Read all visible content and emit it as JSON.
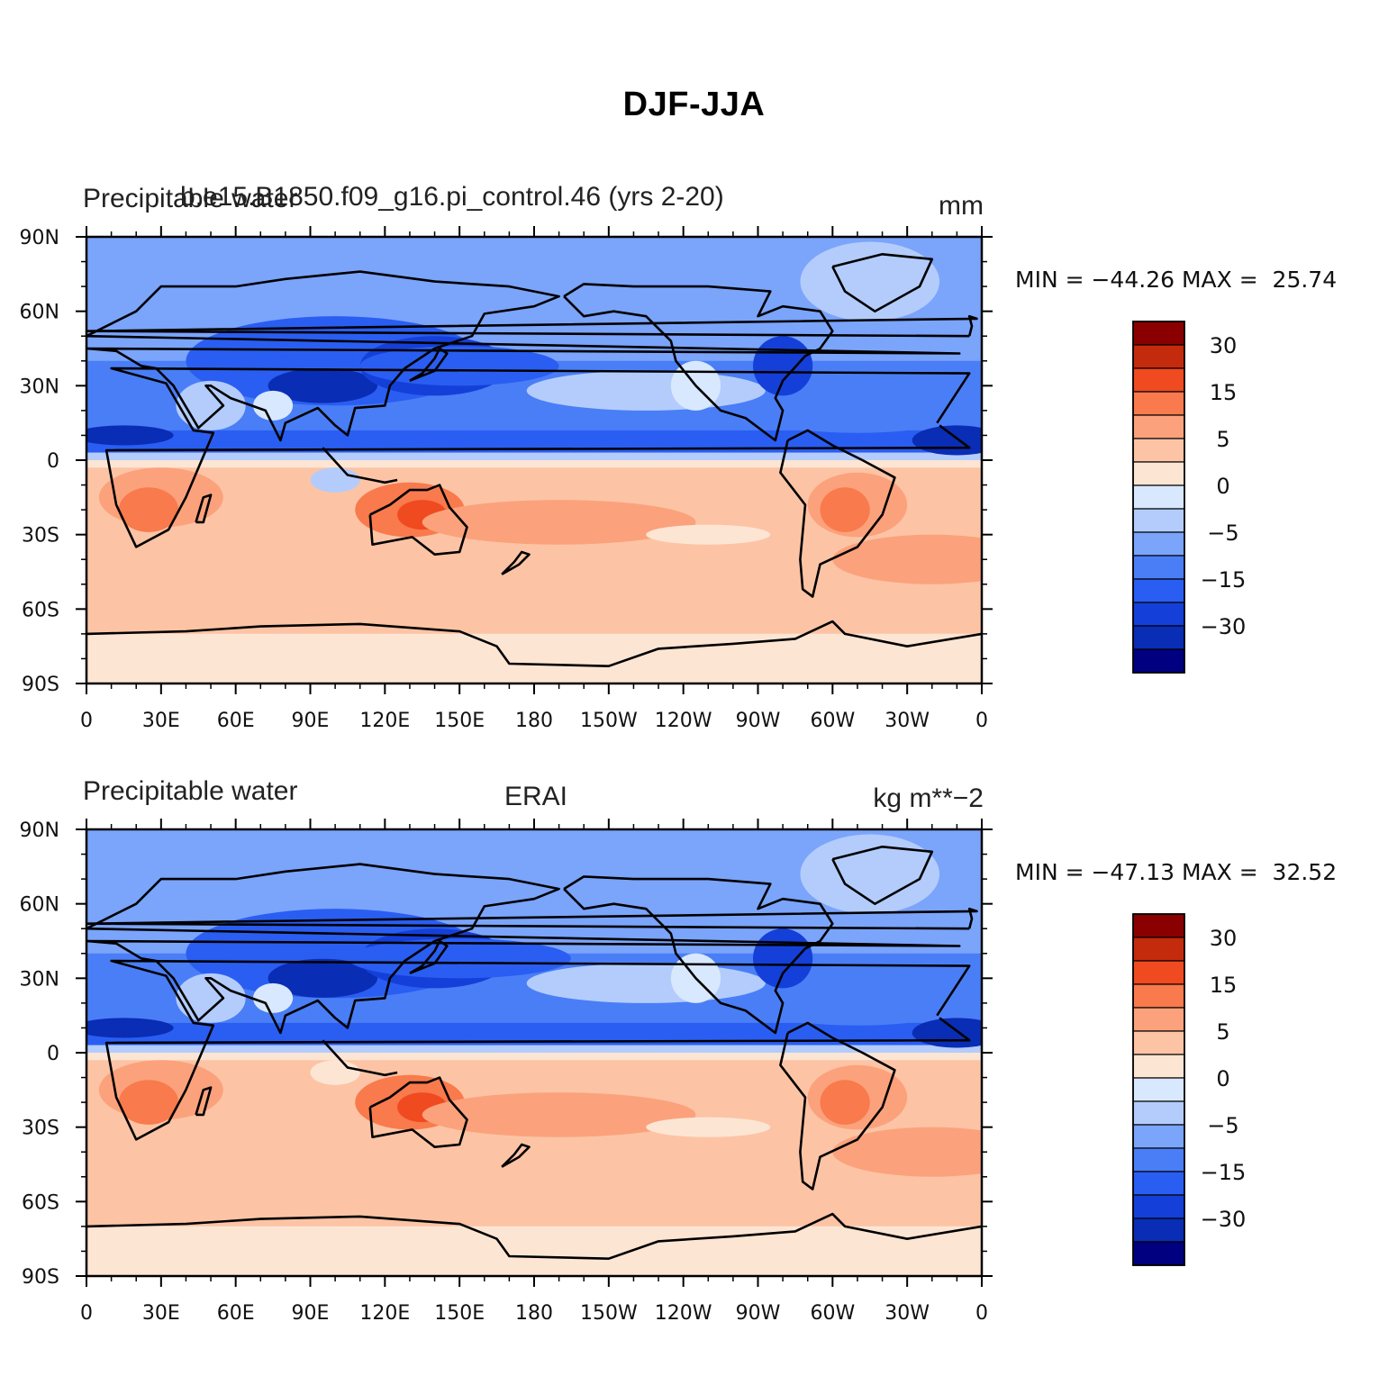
{
  "figure": {
    "title": "DJF-JJA"
  },
  "colors": {
    "levels": [
      "#000080",
      "#0a2db5",
      "#1440d9",
      "#2a5ef2",
      "#4a7ef6",
      "#7ba4fb",
      "#b3ccfc",
      "#d8e8fe",
      "#fde5d4",
      "#fcc4a5",
      "#fba27c",
      "#f97a4c",
      "#f04a20",
      "#c42a0c",
      "#8a0000"
    ]
  },
  "chart_data": [
    {
      "type": "heatmap",
      "title_left": "Precipitable water",
      "title_center": "b.e15.B1850.f09_g16.pi_control.46 (yrs 2-20)",
      "units": "mm",
      "min_max_text": "MIN = −44.26 MAX =  25.74",
      "min": -44.26,
      "max": 25.74,
      "x_ticks": [
        "0",
        "30E",
        "60E",
        "90E",
        "120E",
        "150E",
        "180",
        "150W",
        "120W",
        "90W",
        "60W",
        "30W",
        "0"
      ],
      "y_ticks": [
        "90N",
        "60N",
        "30N",
        "0",
        "30S",
        "60S",
        "90S"
      ],
      "colorbar_labels": [
        "30",
        "15",
        "5",
        "0",
        "−5",
        "−15",
        "−30"
      ],
      "colorbar_levels": [
        30,
        15,
        5,
        0,
        -5,
        -15,
        -30
      ]
    },
    {
      "type": "heatmap",
      "title_left": "Precipitable water",
      "title_center": "ERAI",
      "units": "kg m**−2",
      "min_max_text": "MIN = −47.13 MAX =  32.52",
      "min": -47.13,
      "max": 32.52,
      "x_ticks": [
        "0",
        "30E",
        "60E",
        "90E",
        "120E",
        "150E",
        "180",
        "150W",
        "120W",
        "90W",
        "60W",
        "30W",
        "0"
      ],
      "y_ticks": [
        "90N",
        "60N",
        "30N",
        "0",
        "30S",
        "60S",
        "90S"
      ],
      "colorbar_labels": [
        "30",
        "15",
        "5",
        "0",
        "−5",
        "−15",
        "−30"
      ],
      "colorbar_levels": [
        30,
        15,
        5,
        0,
        -5,
        -15,
        -30
      ]
    }
  ]
}
